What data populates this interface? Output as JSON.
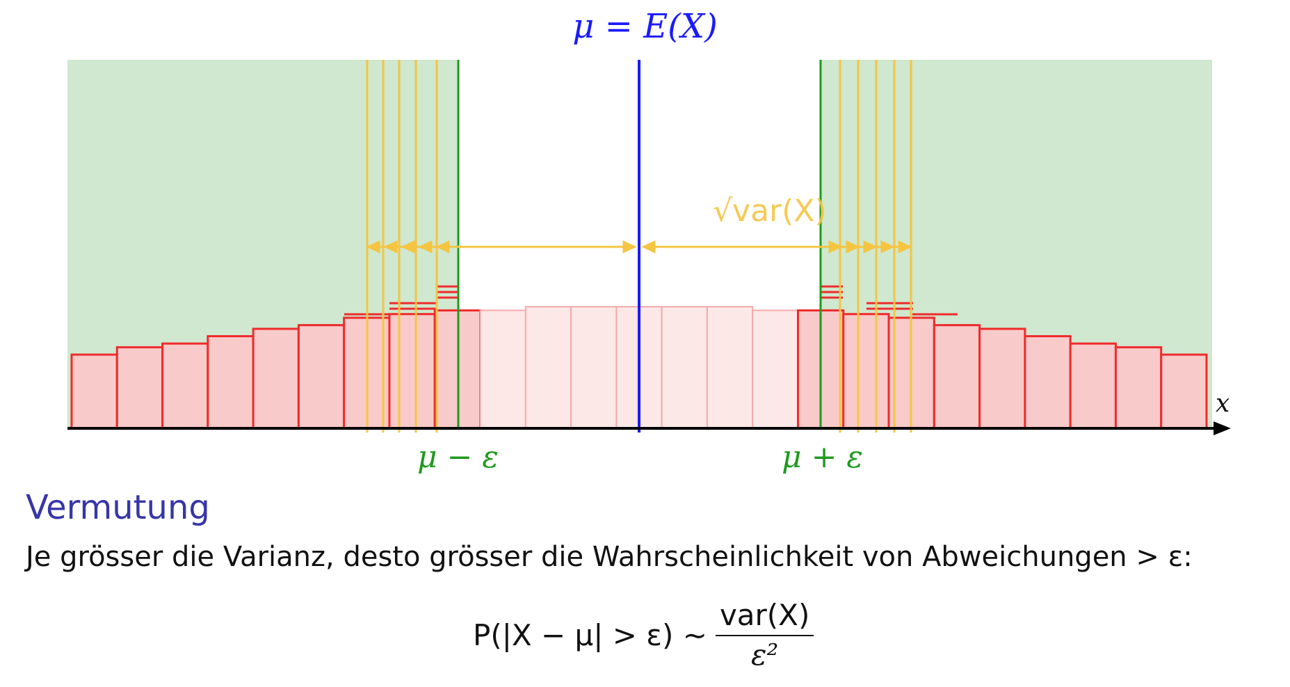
{
  "header": {
    "expectation": "μ = E(X)"
  },
  "axis": {
    "x_label": "x"
  },
  "labels": {
    "mu_minus_eps": "μ − ε",
    "mu_plus_eps": "μ + ε",
    "sqrt_var": "√var(X)"
  },
  "section": {
    "heading": "Vermutung"
  },
  "statement": "Je grösser die Varianz, desto grösser die Wahrscheinlichkeit von Abweichungen > ε:",
  "formula": {
    "lhs": "P(|X − μ| > ε) ∼",
    "numerator": "var(X)",
    "denominator": "ε²"
  },
  "colors": {
    "region_green": "#cfe8cf",
    "bar_red": "#ef2b2b",
    "bar_fill": "#f9caca",
    "mean_blue": "#1a1aff",
    "eps_green": "#1f9a1f",
    "sigma_yellow": "#f5c542"
  },
  "histogram": {
    "bins": 25,
    "heights": [
      0.2,
      0.22,
      0.23,
      0.25,
      0.27,
      0.28,
      0.3,
      0.31,
      0.32,
      0.32,
      0.33,
      0.33,
      0.33,
      0.33,
      0.33,
      0.32,
      0.32,
      0.31,
      0.3,
      0.28,
      0.27,
      0.25,
      0.23,
      0.22,
      0.2
    ]
  }
}
